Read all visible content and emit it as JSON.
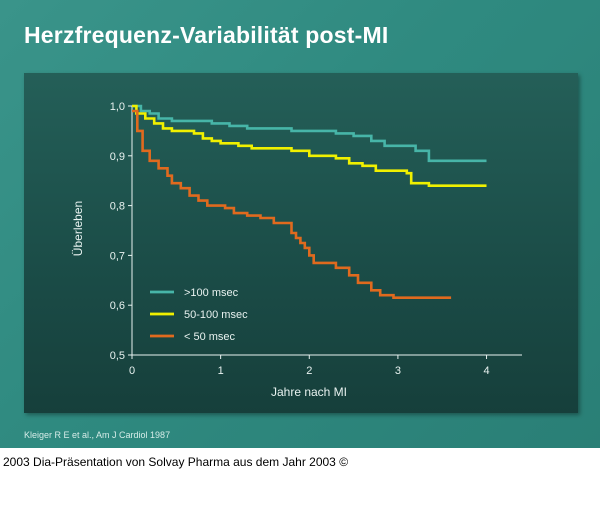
{
  "slide": {
    "title": "Herzfrequenz-Variabilität post-MI",
    "source": "Kleiger R E et al., Am J Cardiol 1987"
  },
  "footer": {
    "text": "2003 Dia-Präsentation von Solvay Pharma aus dem Jahr 2003 ©"
  },
  "chart_data": {
    "type": "line",
    "step": true,
    "title": "Herzfrequenz-Variabilität post-MI",
    "xlabel": "Jahre nach MI",
    "ylabel": "Überleben",
    "xlim": [
      0,
      4.4
    ],
    "ylim": [
      0.5,
      1.0
    ],
    "x_ticks": [
      0,
      1,
      2,
      3,
      4
    ],
    "y_ticks": [
      0.5,
      0.6,
      0.7,
      0.8,
      0.9,
      1.0
    ],
    "x_tick_labels": [
      "0",
      "1",
      "2",
      "3",
      "4"
    ],
    "y_tick_labels": [
      "0,5",
      "0,6",
      "0,7",
      "0,8",
      "0,9",
      "1,0"
    ],
    "grid": false,
    "legend_position": "bottom-left",
    "series": [
      {
        "name": ">100 msec",
        "color": "#47b5a8",
        "points": [
          [
            0,
            1.0
          ],
          [
            0.1,
            0.99
          ],
          [
            0.2,
            0.985
          ],
          [
            0.3,
            0.975
          ],
          [
            0.45,
            0.97
          ],
          [
            0.9,
            0.965
          ],
          [
            1.1,
            0.96
          ],
          [
            1.3,
            0.955
          ],
          [
            1.8,
            0.95
          ],
          [
            2.3,
            0.945
          ],
          [
            2.5,
            0.94
          ],
          [
            2.7,
            0.93
          ],
          [
            2.85,
            0.92
          ],
          [
            3.2,
            0.91
          ],
          [
            3.35,
            0.89
          ],
          [
            4.0,
            0.89
          ]
        ]
      },
      {
        "name": "50-100 msec",
        "color": "#f0f000",
        "points": [
          [
            0,
            1.0
          ],
          [
            0.05,
            0.985
          ],
          [
            0.15,
            0.975
          ],
          [
            0.25,
            0.965
          ],
          [
            0.35,
            0.955
          ],
          [
            0.45,
            0.95
          ],
          [
            0.7,
            0.945
          ],
          [
            0.8,
            0.935
          ],
          [
            0.9,
            0.93
          ],
          [
            1.0,
            0.925
          ],
          [
            1.2,
            0.92
          ],
          [
            1.35,
            0.915
          ],
          [
            1.8,
            0.91
          ],
          [
            2.0,
            0.9
          ],
          [
            2.3,
            0.895
          ],
          [
            2.45,
            0.885
          ],
          [
            2.6,
            0.88
          ],
          [
            2.75,
            0.87
          ],
          [
            3.1,
            0.865
          ],
          [
            3.15,
            0.845
          ],
          [
            3.35,
            0.84
          ],
          [
            4.0,
            0.84
          ]
        ]
      },
      {
        "name": "< 50 msec",
        "color": "#e06a1e",
        "points": [
          [
            0,
            0.99
          ],
          [
            0.06,
            0.95
          ],
          [
            0.12,
            0.91
          ],
          [
            0.2,
            0.89
          ],
          [
            0.3,
            0.875
          ],
          [
            0.4,
            0.86
          ],
          [
            0.45,
            0.845
          ],
          [
            0.55,
            0.835
          ],
          [
            0.65,
            0.82
          ],
          [
            0.75,
            0.81
          ],
          [
            0.85,
            0.8
          ],
          [
            1.05,
            0.795
          ],
          [
            1.15,
            0.785
          ],
          [
            1.3,
            0.78
          ],
          [
            1.45,
            0.775
          ],
          [
            1.6,
            0.765
          ],
          [
            1.8,
            0.745
          ],
          [
            1.85,
            0.735
          ],
          [
            1.9,
            0.725
          ],
          [
            1.95,
            0.715
          ],
          [
            2.0,
            0.7
          ],
          [
            2.05,
            0.685
          ],
          [
            2.3,
            0.675
          ],
          [
            2.45,
            0.66
          ],
          [
            2.55,
            0.645
          ],
          [
            2.7,
            0.63
          ],
          [
            2.8,
            0.62
          ],
          [
            2.95,
            0.615
          ],
          [
            3.6,
            0.615
          ]
        ]
      }
    ]
  }
}
